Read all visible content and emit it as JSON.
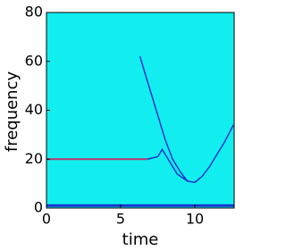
{
  "chart_data": {
    "type": "spectrogram",
    "x_label": "time",
    "y_label": "frequency",
    "xlim": [
      0,
      12.65
    ],
    "ylim": [
      0,
      80
    ],
    "xticks": [
      0,
      5,
      10
    ],
    "yticks": [
      0,
      20,
      40,
      60,
      80
    ],
    "background_color": "#12eef0",
    "series": [
      {
        "color": "#1a20c8",
        "width": 3,
        "x": [
          0,
          12.65
        ],
        "values": [
          1,
          1
        ]
      },
      {
        "color": "#d02060",
        "width": 2,
        "x": [
          0,
          6.8
        ],
        "values": [
          20,
          20
        ]
      },
      {
        "color": "#1a20c8",
        "width": 1.5,
        "x": [
          6.8,
          7.5,
          7.8,
          8.2,
          8.8,
          9.5
        ],
        "values": [
          20,
          21,
          24,
          20,
          14,
          11
        ]
      },
      {
        "color": "#1a20c8",
        "width": 1.5,
        "x": [
          6.3,
          7,
          7.5,
          8,
          8.5,
          9,
          9.5,
          10
        ],
        "values": [
          62,
          48,
          38,
          28,
          20,
          15,
          11,
          10.5
        ]
      },
      {
        "color": "#1a20c8",
        "width": 1.5,
        "x": [
          10,
          10.5,
          11,
          11.5,
          12,
          12.6
        ],
        "values": [
          10.5,
          13,
          17,
          22,
          27,
          34
        ]
      }
    ]
  }
}
